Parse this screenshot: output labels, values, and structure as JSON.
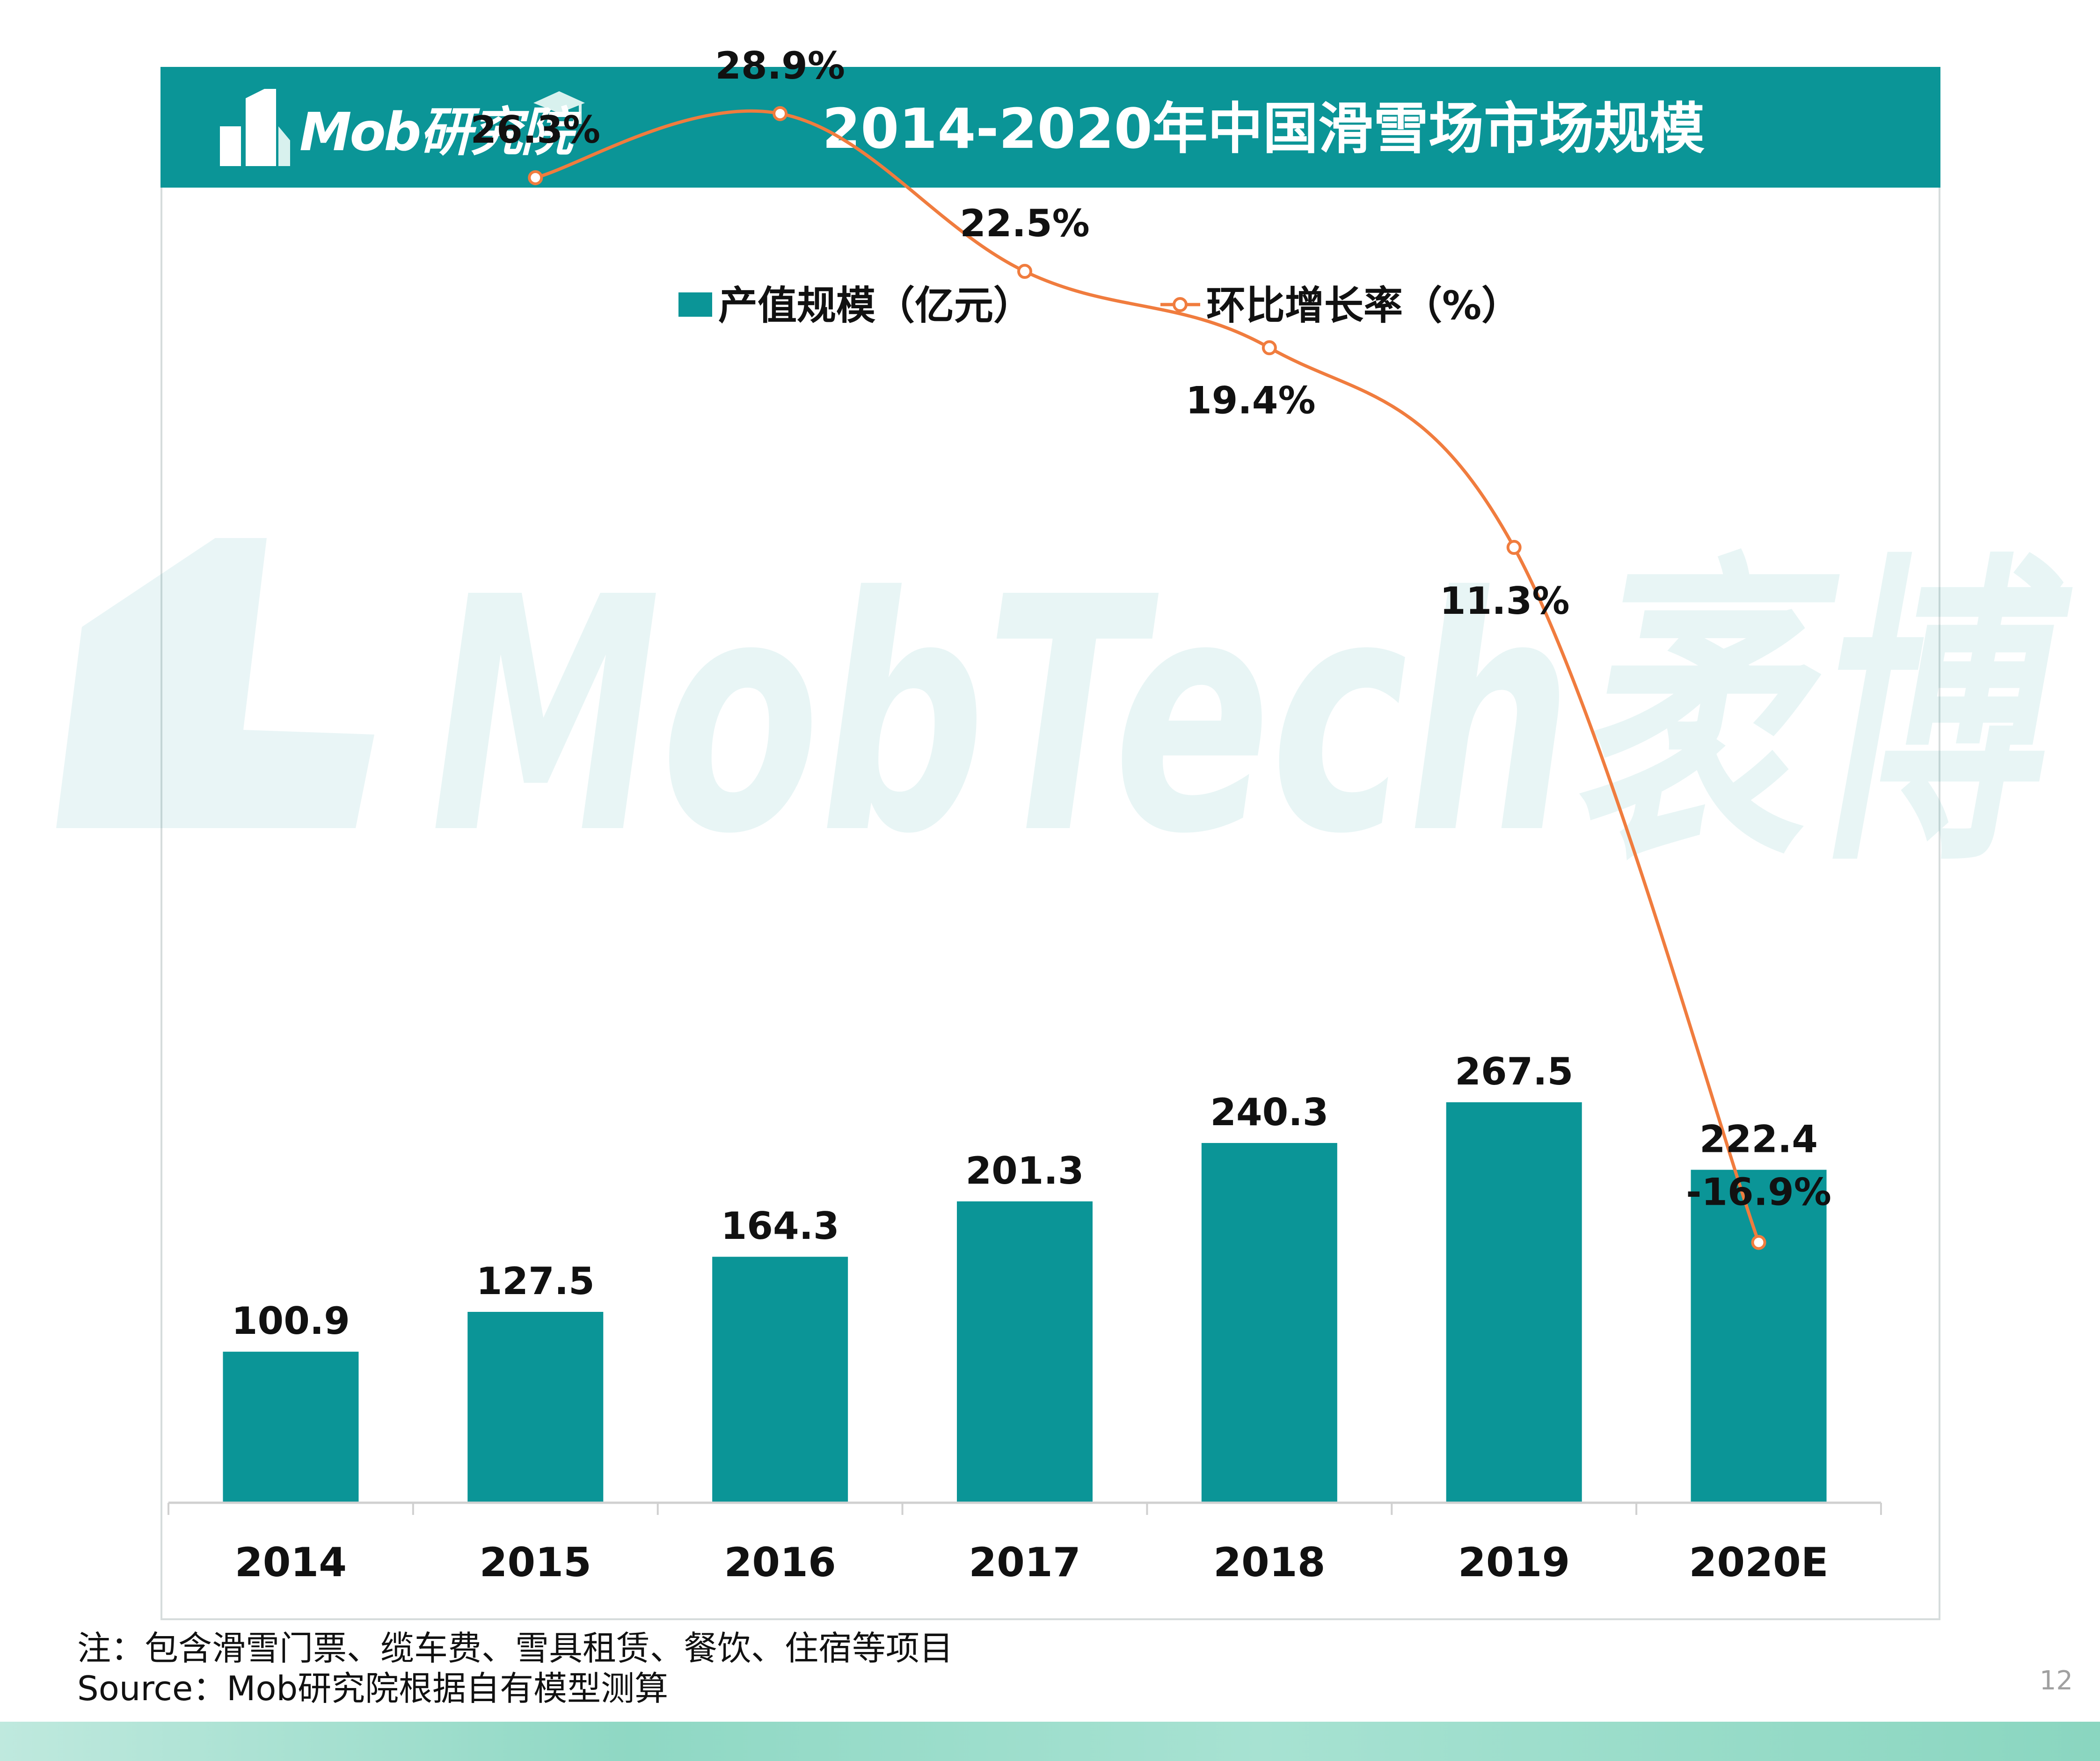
{
  "header": {
    "logo_text": "Mob研究院",
    "title": "2014-2020年中国滑雪场市场规模"
  },
  "watermark": {
    "text": "MobTech袤博"
  },
  "chart_data": {
    "type": "bar+line",
    "categories": [
      "2014",
      "2015",
      "2016",
      "2017",
      "2018",
      "2019",
      "2020E"
    ],
    "series": [
      {
        "name": "产值规模（亿元）",
        "type": "bar",
        "axis": "left",
        "color": "#0b9597",
        "values": [
          100.9,
          127.5,
          164.3,
          201.3,
          240.3,
          267.5,
          222.4
        ],
        "labels": [
          "100.9",
          "127.5",
          "164.3",
          "201.3",
          "240.3",
          "267.5",
          "222.4"
        ]
      },
      {
        "name": "环比增长率（%）",
        "type": "line",
        "axis": "right",
        "color": "#f07c3e",
        "values": [
          null,
          26.3,
          28.9,
          22.5,
          19.4,
          11.3,
          -16.9
        ],
        "labels": [
          "",
          "26.3%",
          "28.9%",
          "22.5%",
          "19.4%",
          "11.3%",
          "-16.9%"
        ]
      }
    ],
    "ylim_left": [
      0,
      280
    ],
    "legend_position": "top-center",
    "grid": false
  },
  "footer": {
    "note": "注：包含滑雪门票、缆车费、雪具租赁、餐饮、住宿等项目",
    "source": "Source：Mob研究院根据自有模型测算",
    "page_number": "12"
  }
}
